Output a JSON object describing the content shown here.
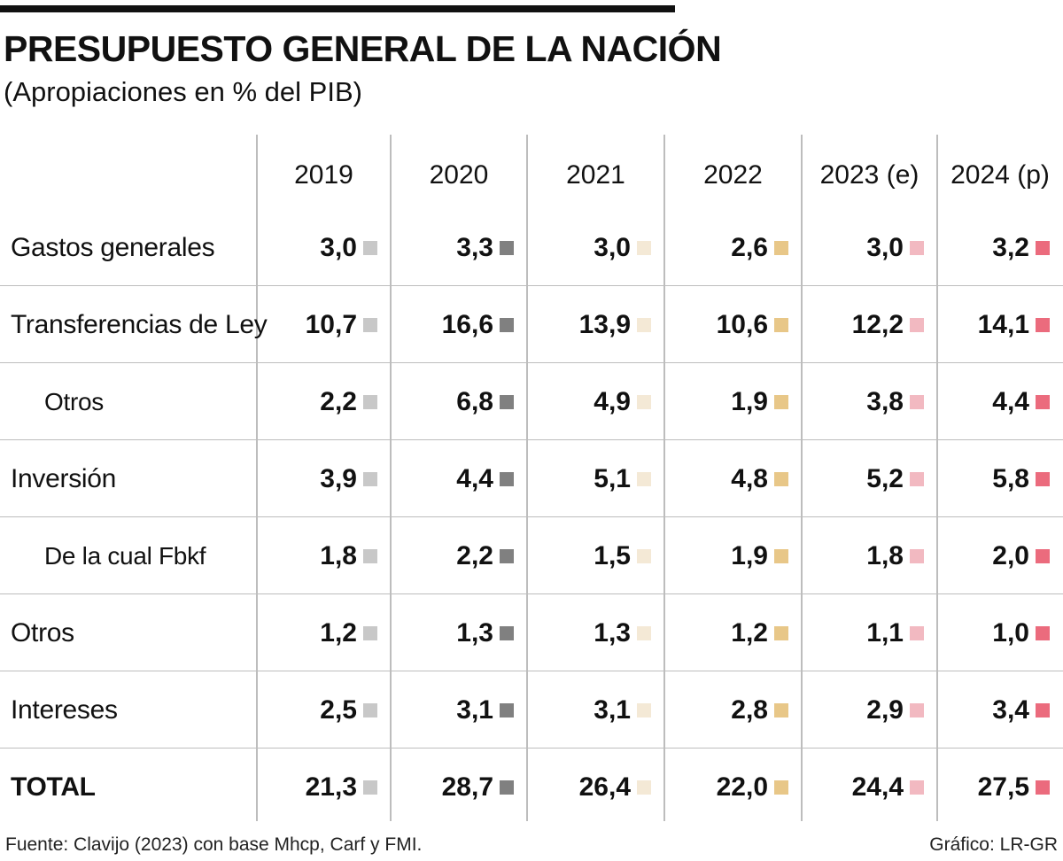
{
  "title": "PRESUPUESTO GENERAL DE LA NACIÓN",
  "subtitle": "(Apropiaciones en % del PIB)",
  "source": "Fuente: Clavijo (2023) con base Mhcp, Carf y FMI.",
  "credit": "Gráfico: LR-GR",
  "colors": {
    "2019": "#c8c8c8",
    "2020": "#808080",
    "2021": "#f4e9d6",
    "2022": "#e8c788",
    "2023": "#f2b9c1",
    "2024": "#eb6b7d"
  },
  "chart_data": {
    "type": "table",
    "title": "PRESUPUESTO GENERAL DE LA NACIÓN",
    "subtitle": "(Apropiaciones en % del PIB)",
    "columns": [
      "2019",
      "2020",
      "2021",
      "2022",
      "2023 (e)",
      "2024 (p)"
    ],
    "rows": [
      {
        "label": "Gastos generales",
        "indent": false,
        "values": [
          "3,0",
          "3,3",
          "3,0",
          "2,6",
          "3,0",
          "3,2"
        ]
      },
      {
        "label": "Transferencias de Ley",
        "indent": false,
        "values": [
          "10,7",
          "16,6",
          "13,9",
          "10,6",
          "12,2",
          "14,1"
        ]
      },
      {
        "label": "Otros",
        "indent": true,
        "values": [
          "2,2",
          "6,8",
          "4,9",
          "1,9",
          "3,8",
          "4,4"
        ]
      },
      {
        "label": "Inversión",
        "indent": false,
        "values": [
          "3,9",
          "4,4",
          "5,1",
          "4,8",
          "5,2",
          "5,8"
        ]
      },
      {
        "label": "De la cual Fbkf",
        "indent": true,
        "values": [
          "1,8",
          "2,2",
          "1,5",
          "1,9",
          "1,8",
          "2,0"
        ]
      },
      {
        "label": "Otros",
        "indent": false,
        "values": [
          "1,2",
          "1,3",
          "1,3",
          "1,2",
          "1,1",
          "1,0"
        ]
      },
      {
        "label": "Intereses",
        "indent": false,
        "values": [
          "2,5",
          "3,1",
          "3,1",
          "2,8",
          "2,9",
          "3,4"
        ]
      },
      {
        "label": "TOTAL",
        "indent": false,
        "total": true,
        "values": [
          "21,3",
          "28,7",
          "26,4",
          "22,0",
          "24,4",
          "27,5"
        ]
      }
    ]
  }
}
